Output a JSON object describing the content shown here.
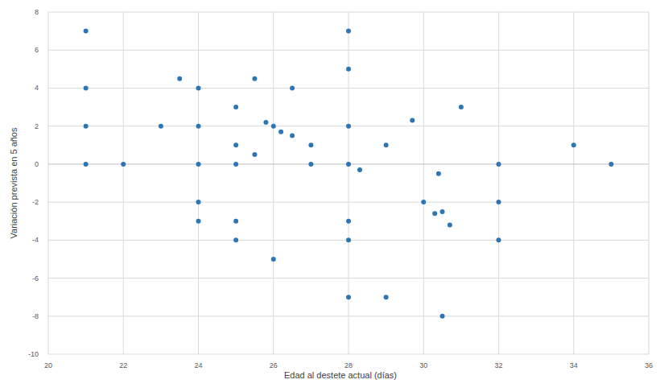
{
  "chart_data": {
    "type": "scatter",
    "x_label": "Edad al destete actual (días)",
    "y_label": "Variación prevista en 5 años",
    "x": [
      21,
      21,
      21,
      21,
      22,
      23,
      23.5,
      24,
      24,
      24,
      24,
      24,
      25,
      25,
      25,
      25,
      25,
      25.5,
      25.5,
      25.8,
      26,
      26,
      26.2,
      26.5,
      26.5,
      27,
      27,
      28,
      28,
      28,
      28,
      28,
      28,
      28,
      28.3,
      29,
      29,
      29.7,
      30,
      30.3,
      30.4,
      30.5,
      30.5,
      30.7,
      31,
      32,
      32,
      32,
      34,
      35
    ],
    "values": [
      7,
      4,
      2,
      0,
      0,
      2,
      4.5,
      4,
      2,
      0,
      -2,
      -3,
      3,
      1,
      0,
      -3,
      -4,
      4.5,
      0.5,
      2.2,
      2,
      -5,
      1.7,
      4,
      1.5,
      1,
      0,
      7,
      5,
      2,
      0,
      -3,
      -4,
      -7,
      -0.3,
      1,
      -7,
      2.3,
      -2,
      -2.6,
      -0.5,
      -2.5,
      -8,
      -3.2,
      3,
      0,
      -2,
      -4,
      1,
      0
    ],
    "color": "#2e75b6",
    "marker": "circle",
    "xlim": [
      20,
      36
    ],
    "xticks": [
      20,
      22,
      24,
      26,
      28,
      30,
      32,
      34,
      36
    ],
    "ylim": [
      -10,
      8
    ],
    "yticks": [
      -10,
      -8,
      -6,
      -4,
      -2,
      0,
      2,
      4,
      6,
      8
    ],
    "grid": true
  }
}
